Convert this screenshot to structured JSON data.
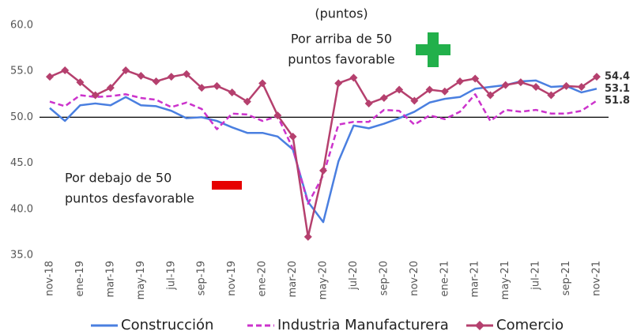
{
  "chart_data": {
    "type": "line",
    "annotations": {
      "unit": "(puntos)",
      "above": [
        "Por arriba de 50",
        "puntos favorable"
      ],
      "below": [
        "Por debajo de 50",
        "puntos desfavorable"
      ]
    },
    "categories": [
      "nov-18",
      null,
      "ene-19",
      null,
      "mar-19",
      null,
      "may-19",
      null,
      "jul-19",
      null,
      "sep-19",
      null,
      "nov-19",
      null,
      "ene-20",
      null,
      "mar-20",
      null,
      "may-20",
      null,
      "jul-20",
      null,
      "sep-20",
      null,
      "nov-20",
      null,
      "ene-21",
      null,
      "mar-21",
      null,
      "may-21",
      null,
      "jul-21",
      null,
      "sep-21",
      null,
      "nov-21"
    ],
    "series": [
      {
        "name": "Construcción",
        "color": "#4a7fe0",
        "dash": false,
        "marker": null,
        "label_color": "#3a6fd0",
        "values": [
          51.0,
          49.6,
          51.3,
          51.5,
          51.3,
          52.2,
          51.3,
          51.2,
          50.7,
          49.9,
          50.0,
          49.6,
          48.9,
          48.3,
          48.3,
          47.9,
          46.5,
          40.8,
          38.6,
          45.2,
          49.1,
          48.8,
          49.3,
          49.9,
          50.6,
          51.6,
          52.0,
          52.2,
          53.1,
          53.3,
          53.5,
          53.9,
          54.0,
          53.3,
          53.4,
          52.7,
          53.1
        ]
      },
      {
        "name": "Industria Manufacturera",
        "color": "#cc33cc",
        "dash": true,
        "marker": null,
        "label_color": "#cc33cc",
        "values": [
          51.7,
          51.2,
          52.4,
          52.2,
          52.3,
          52.5,
          52.1,
          51.9,
          51.1,
          51.6,
          50.9,
          48.7,
          50.4,
          50.3,
          49.6,
          50.1,
          46.6,
          40.6,
          43.7,
          49.2,
          49.5,
          49.5,
          50.8,
          50.7,
          49.2,
          50.2,
          49.8,
          50.6,
          52.5,
          49.6,
          50.8,
          50.6,
          50.8,
          50.4,
          50.4,
          50.7,
          51.8
        ]
      },
      {
        "name": "Comercio",
        "color": "#b5406e",
        "dash": false,
        "marker": "diamond",
        "label_color": "#5a1028",
        "values": [
          54.4,
          55.1,
          53.8,
          52.4,
          53.2,
          55.1,
          54.5,
          53.9,
          54.4,
          54.7,
          53.2,
          53.4,
          52.7,
          51.7,
          53.7,
          50.2,
          47.9,
          37.0,
          44.2,
          53.7,
          54.3,
          51.5,
          52.1,
          53.0,
          51.8,
          53.0,
          52.8,
          53.9,
          54.2,
          52.4,
          53.5,
          53.8,
          53.3,
          52.4,
          53.4,
          53.3,
          54.4
        ]
      }
    ],
    "ylim": [
      35,
      60
    ],
    "yticks": [
      {
        "value": 35,
        "label": "35.0"
      },
      {
        "value": 40,
        "label": "40.0"
      },
      {
        "value": 45,
        "label": "45.0"
      },
      {
        "value": 50,
        "label": "50.0"
      },
      {
        "value": 55,
        "label": "55.0"
      },
      {
        "value": 60,
        "label": "60.0"
      }
    ],
    "reference_line": 50,
    "grid": false
  }
}
